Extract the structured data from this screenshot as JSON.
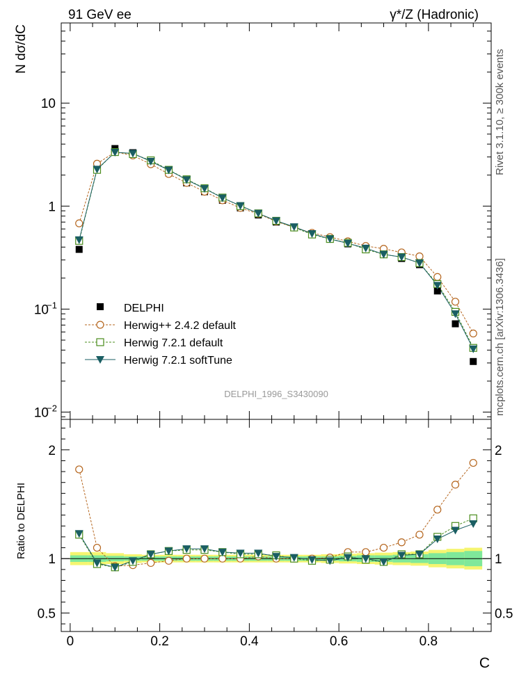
{
  "header": {
    "left": "91 GeV ee",
    "right": "γ*/Z (Hadronic)"
  },
  "side_labels": {
    "rivet": "Rivet 3.1.10, ≥ 300k events",
    "mcplots": "mcplots.cern.ch [arXiv:1306.3436]"
  },
  "watermark": "DELPHI_1996_S3430090",
  "colors": {
    "data": "#000000",
    "herwigpp": "#b5651d",
    "herwig721": "#4a8c1c",
    "softtune": "#1a5e63",
    "band_inner": "#7fe89a",
    "band_outer": "#f5f570"
  },
  "chart_data": [
    {
      "type": "scatter",
      "panel": "main",
      "yscale": "log",
      "ylabel": "N dσ/dC",
      "xlim": [
        -0.02,
        0.94
      ],
      "ylim": [
        0.0085,
        60
      ],
      "yticks": [
        {
          "v": 0.01,
          "base": "10",
          "exp": "−2"
        },
        {
          "v": 0.1,
          "base": "10",
          "exp": "−1"
        },
        {
          "v": 1,
          "base": "1",
          "exp": ""
        },
        {
          "v": 10,
          "base": "10",
          "exp": ""
        }
      ],
      "x": [
        0.02,
        0.06,
        0.1,
        0.14,
        0.18,
        0.22,
        0.26,
        0.3,
        0.34,
        0.38,
        0.42,
        0.46,
        0.5,
        0.54,
        0.58,
        0.62,
        0.66,
        0.7,
        0.74,
        0.78,
        0.82,
        0.86,
        0.9
      ],
      "series": [
        {
          "name": "DELPHI",
          "key": "data",
          "values": [
            0.38,
            2.38,
            3.62,
            3.3,
            2.68,
            2.1,
            1.68,
            1.38,
            1.14,
            0.96,
            0.82,
            0.7,
            0.62,
            0.54,
            0.48,
            0.43,
            0.385,
            0.35,
            0.31,
            0.27,
            0.15,
            0.072,
            0.031
          ]
        },
        {
          "name": "Herwig++ 2.4.2 default",
          "key": "herwigpp",
          "values": [
            0.68,
            2.58,
            3.35,
            3.1,
            2.55,
            2.05,
            1.68,
            1.38,
            1.14,
            0.96,
            0.84,
            0.71,
            0.62,
            0.55,
            0.5,
            0.455,
            0.41,
            0.385,
            0.355,
            0.325,
            0.205,
            0.118,
            0.058
          ]
        },
        {
          "name": "Herwig 7.2.1 default",
          "key": "herwig721",
          "values": [
            0.46,
            2.25,
            3.35,
            3.2,
            2.78,
            2.25,
            1.82,
            1.49,
            1.21,
            1.0,
            0.85,
            0.72,
            0.62,
            0.53,
            0.48,
            0.44,
            0.38,
            0.34,
            0.32,
            0.28,
            0.175,
            0.094,
            0.042
          ]
        },
        {
          "name": "Herwig 7.2.1 softTune",
          "key": "softtune",
          "values": [
            0.47,
            2.28,
            3.33,
            3.25,
            2.72,
            2.24,
            1.8,
            1.48,
            1.2,
            1.01,
            0.85,
            0.72,
            0.63,
            0.54,
            0.48,
            0.435,
            0.39,
            0.34,
            0.32,
            0.28,
            0.17,
            0.09,
            0.041
          ]
        }
      ]
    },
    {
      "type": "scatter",
      "panel": "ratio",
      "ylabel": "Ratio to DELPHI",
      "xlabel": "C",
      "xlim": [
        -0.02,
        0.94
      ],
      "ylim": [
        0.33,
        2.28
      ],
      "yticks": [
        0.5,
        1,
        2
      ],
      "xticks": [
        0,
        0.2,
        0.4,
        0.6,
        0.8
      ],
      "band_inner": [
        0.03,
        0.03,
        0.025,
        0.02,
        0.02,
        0.02,
        0.02,
        0.02,
        0.02,
        0.02,
        0.02,
        0.02,
        0.02,
        0.02,
        0.02,
        0.025,
        0.03,
        0.03,
        0.035,
        0.04,
        0.05,
        0.06,
        0.07
      ],
      "band_outer": [
        0.06,
        0.06,
        0.05,
        0.04,
        0.035,
        0.035,
        0.035,
        0.035,
        0.035,
        0.035,
        0.035,
        0.035,
        0.035,
        0.035,
        0.04,
        0.045,
        0.05,
        0.055,
        0.06,
        0.065,
        0.08,
        0.09,
        0.1
      ],
      "series": [
        {
          "name": "Herwig++ 2.4.2 default",
          "key": "herwigpp",
          "values": [
            1.82,
            1.1,
            0.93,
            0.94,
            0.96,
            0.98,
            1.0,
            1.0,
            1.0,
            1.0,
            1.02,
            1.0,
            1.0,
            1.0,
            1.01,
            1.06,
            1.06,
            1.1,
            1.15,
            1.22,
            1.45,
            1.68,
            1.88
          ]
        },
        {
          "name": "Herwig 7.2.1 default",
          "key": "herwig721",
          "values": [
            1.22,
            0.95,
            0.92,
            0.97,
            1.04,
            1.07,
            1.08,
            1.08,
            1.06,
            1.04,
            1.04,
            1.03,
            1.0,
            0.98,
            0.99,
            1.02,
            0.99,
            0.97,
            1.04,
            1.04,
            1.2,
            1.3,
            1.37
          ]
        },
        {
          "name": "Herwig 7.2.1 softTune",
          "key": "softtune",
          "values": [
            1.23,
            0.96,
            0.92,
            0.98,
            1.04,
            1.07,
            1.09,
            1.09,
            1.06,
            1.05,
            1.05,
            1.02,
            1.01,
            0.99,
            0.98,
            1.01,
            1.0,
            0.97,
            1.03,
            1.04,
            1.18,
            1.26,
            1.32
          ]
        }
      ]
    }
  ]
}
